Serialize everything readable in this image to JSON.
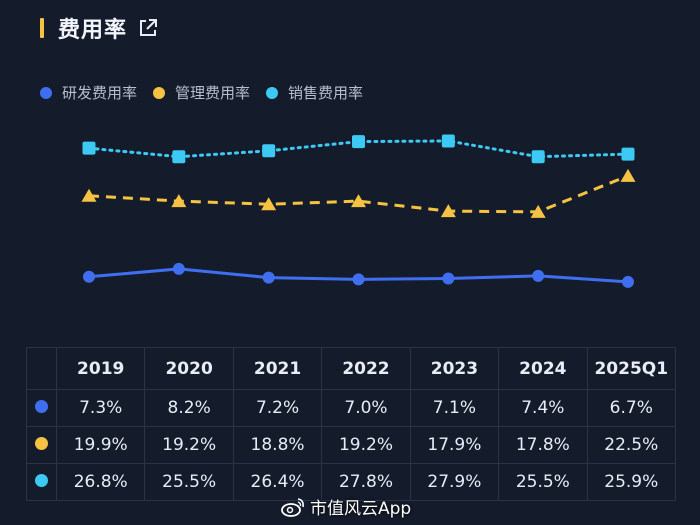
{
  "header": {
    "title": "费用率"
  },
  "colors": {
    "rd": "#3f6ff0",
    "admin": "#f5c242",
    "sales": "#3ccaf5",
    "accent": "#f5c242"
  },
  "chart_data": {
    "type": "line",
    "x": [
      "2019",
      "2020",
      "2021",
      "2022",
      "2023",
      "2024",
      "2025Q1"
    ],
    "series": [
      {
        "name": "研发费用率",
        "values": [
          7.3,
          8.2,
          7.2,
          7.0,
          7.1,
          7.4,
          6.7
        ],
        "color": "#3f6ff0",
        "style": "solid",
        "marker": "circle"
      },
      {
        "name": "管理费用率",
        "values": [
          19.9,
          19.2,
          18.8,
          19.2,
          17.9,
          17.8,
          22.5
        ],
        "color": "#f5c242",
        "style": "dashed",
        "marker": "triangle"
      },
      {
        "name": "销售费用率",
        "values": [
          26.8,
          25.5,
          26.4,
          27.8,
          27.9,
          25.5,
          25.9
        ],
        "color": "#3ccaf5",
        "style": "dotted",
        "marker": "square"
      }
    ],
    "legend_position": "top-left",
    "grid": false
  },
  "table": {
    "header": [
      "2019",
      "2020",
      "2021",
      "2022",
      "2023",
      "2024",
      "2025Q1"
    ],
    "rows": [
      {
        "color": "#3f6ff0",
        "cells": [
          "7.3%",
          "8.2%",
          "7.2%",
          "7.0%",
          "7.1%",
          "7.4%",
          "6.7%"
        ]
      },
      {
        "color": "#f5c242",
        "cells": [
          "19.9%",
          "19.2%",
          "18.8%",
          "19.2%",
          "17.9%",
          "17.8%",
          "22.5%"
        ]
      },
      {
        "color": "#3ccaf5",
        "cells": [
          "26.8%",
          "25.5%",
          "26.4%",
          "27.8%",
          "27.9%",
          "25.5%",
          "25.9%"
        ]
      }
    ]
  },
  "watermark": {
    "text": "市值风云App"
  }
}
